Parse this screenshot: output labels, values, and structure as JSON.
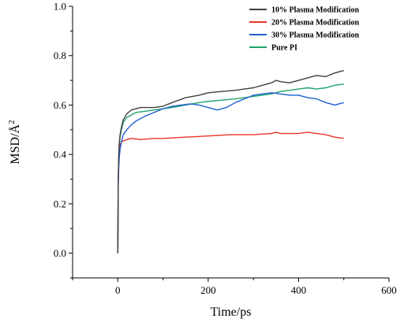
{
  "chart_data": {
    "type": "line",
    "title": "",
    "xlabel": "Time/ps",
    "ylabel": "MSD/Å",
    "ylabel_superscript": "2",
    "xlim": [
      -100,
      600
    ],
    "ylim": [
      -0.1,
      1.0
    ],
    "x_ticks": [
      0,
      200,
      400,
      600
    ],
    "y_ticks": [
      0.0,
      0.2,
      0.4,
      0.6,
      0.8,
      1.0
    ],
    "x_tick_labels": [
      "0",
      "200",
      "400",
      "600"
    ],
    "y_tick_labels": [
      "0.0",
      "0.2",
      "0.4",
      "0.6",
      "0.8",
      "1.0"
    ],
    "grid": false,
    "legend_position": "top-right",
    "series": [
      {
        "name": "10% Plasma Modification",
        "color": "#404040",
        "x": [
          0,
          1,
          2,
          3,
          5,
          8,
          12,
          20,
          30,
          40,
          50,
          60,
          80,
          100,
          120,
          150,
          180,
          200,
          230,
          260,
          280,
          300,
          320,
          340,
          350,
          360,
          380,
          400,
          420,
          440,
          460,
          480,
          500
        ],
        "y": [
          0.0,
          0.3,
          0.38,
          0.44,
          0.48,
          0.51,
          0.54,
          0.565,
          0.58,
          0.585,
          0.59,
          0.59,
          0.59,
          0.595,
          0.61,
          0.63,
          0.64,
          0.65,
          0.655,
          0.66,
          0.665,
          0.67,
          0.68,
          0.69,
          0.7,
          0.695,
          0.69,
          0.7,
          0.71,
          0.72,
          0.715,
          0.73,
          0.74
        ]
      },
      {
        "name": "20% Plasma Modification",
        "color": "#e8332a",
        "x": [
          0,
          1,
          2,
          3,
          5,
          8,
          12,
          20,
          30,
          50,
          80,
          100,
          150,
          200,
          250,
          300,
          340,
          350,
          360,
          400,
          420,
          440,
          460,
          480,
          500
        ],
        "y": [
          0.0,
          0.3,
          0.38,
          0.42,
          0.44,
          0.45,
          0.455,
          0.46,
          0.465,
          0.46,
          0.465,
          0.465,
          0.47,
          0.475,
          0.48,
          0.48,
          0.485,
          0.49,
          0.485,
          0.485,
          0.49,
          0.485,
          0.48,
          0.47,
          0.465
        ]
      },
      {
        "name": "30% Plasma Modification",
        "color": "#1f5fd0",
        "x": [
          0,
          1,
          2,
          3,
          5,
          8,
          12,
          20,
          30,
          40,
          60,
          80,
          100,
          120,
          140,
          160,
          180,
          200,
          220,
          240,
          260,
          280,
          300,
          320,
          340,
          360,
          380,
          400,
          420,
          440,
          460,
          480,
          500
        ],
        "y": [
          0.0,
          0.28,
          0.34,
          0.38,
          0.42,
          0.45,
          0.48,
          0.5,
          0.52,
          0.535,
          0.555,
          0.57,
          0.585,
          0.595,
          0.6,
          0.605,
          0.6,
          0.59,
          0.58,
          0.59,
          0.61,
          0.625,
          0.64,
          0.645,
          0.65,
          0.645,
          0.64,
          0.64,
          0.63,
          0.625,
          0.61,
          0.6,
          0.61
        ]
      },
      {
        "name": "Pure PI",
        "color": "#1ea36a",
        "x": [
          0,
          1,
          2,
          3,
          5,
          8,
          12,
          20,
          30,
          40,
          60,
          80,
          100,
          120,
          150,
          180,
          200,
          230,
          260,
          280,
          300,
          320,
          340,
          360,
          380,
          400,
          420,
          440,
          460,
          480,
          500
        ],
        "y": [
          0.0,
          0.3,
          0.38,
          0.43,
          0.47,
          0.5,
          0.53,
          0.55,
          0.56,
          0.57,
          0.575,
          0.58,
          0.585,
          0.59,
          0.6,
          0.61,
          0.615,
          0.62,
          0.625,
          0.63,
          0.635,
          0.64,
          0.645,
          0.655,
          0.66,
          0.665,
          0.67,
          0.665,
          0.67,
          0.68,
          0.685
        ]
      }
    ]
  }
}
